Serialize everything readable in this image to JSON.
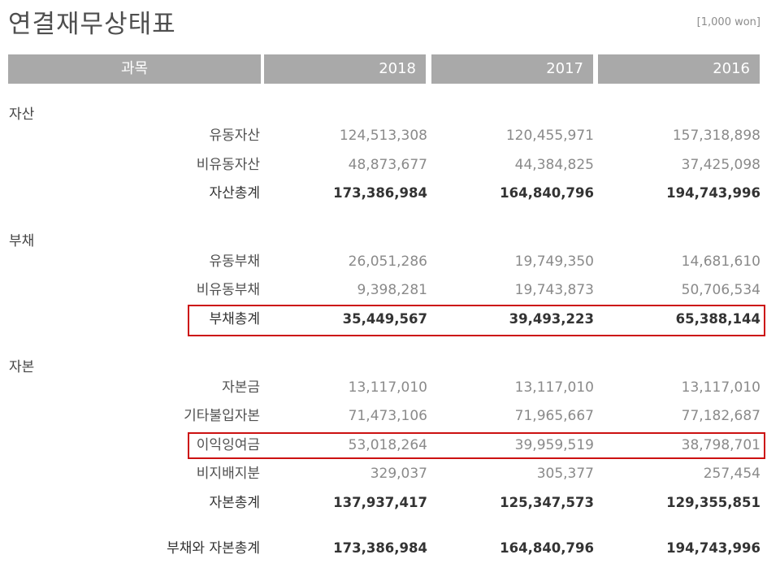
{
  "title": "연결재무상태표",
  "unit": "[1,000 won]",
  "header": {
    "subject": "과목",
    "years": [
      "2018",
      "2017",
      "2016"
    ]
  },
  "sections": {
    "assets": {
      "label": "자산",
      "rows": [
        {
          "label": "유동자산",
          "values": [
            "124,513,308",
            "120,455,971",
            "157,318,898"
          ]
        },
        {
          "label": "비유동자산",
          "values": [
            "48,873,677",
            "44,384,825",
            "37,425,098"
          ]
        },
        {
          "label": "자산총계",
          "values": [
            "173,386,984",
            "164,840,796",
            "194,743,996"
          ]
        }
      ]
    },
    "liabilities": {
      "label": "부채",
      "rows": [
        {
          "label": "유동부채",
          "values": [
            "26,051,286",
            "19,749,350",
            "14,681,610"
          ]
        },
        {
          "label": "비유동부채",
          "values": [
            "9,398,281",
            "19,743,873",
            "50,706,534"
          ]
        },
        {
          "label": "부채총계",
          "values": [
            "35,449,567",
            "39,493,223",
            "65,388,144"
          ]
        }
      ]
    },
    "equity": {
      "label": "자본",
      "rows": [
        {
          "label": "자본금",
          "values": [
            "13,117,010",
            "13,117,010",
            "13,117,010"
          ]
        },
        {
          "label": "기타불입자본",
          "values": [
            "71,473,106",
            "71,965,667",
            "77,182,687"
          ]
        },
        {
          "label": "이익잉여금",
          "values": [
            "53,018,264",
            "39,959,519",
            "38,798,701"
          ]
        },
        {
          "label": "비지배지분",
          "values": [
            "329,037",
            "305,377",
            "257,454"
          ]
        },
        {
          "label": "자본총계",
          "values": [
            "137,937,417",
            "125,347,573",
            "129,355,851"
          ]
        }
      ]
    }
  },
  "grand_total": {
    "label": "부채와 자본총계",
    "values": [
      "173,386,984",
      "164,840,796",
      "194,743,996"
    ]
  },
  "colors": {
    "header_bg": "#a9a9a9",
    "highlight": "#cc1111"
  }
}
